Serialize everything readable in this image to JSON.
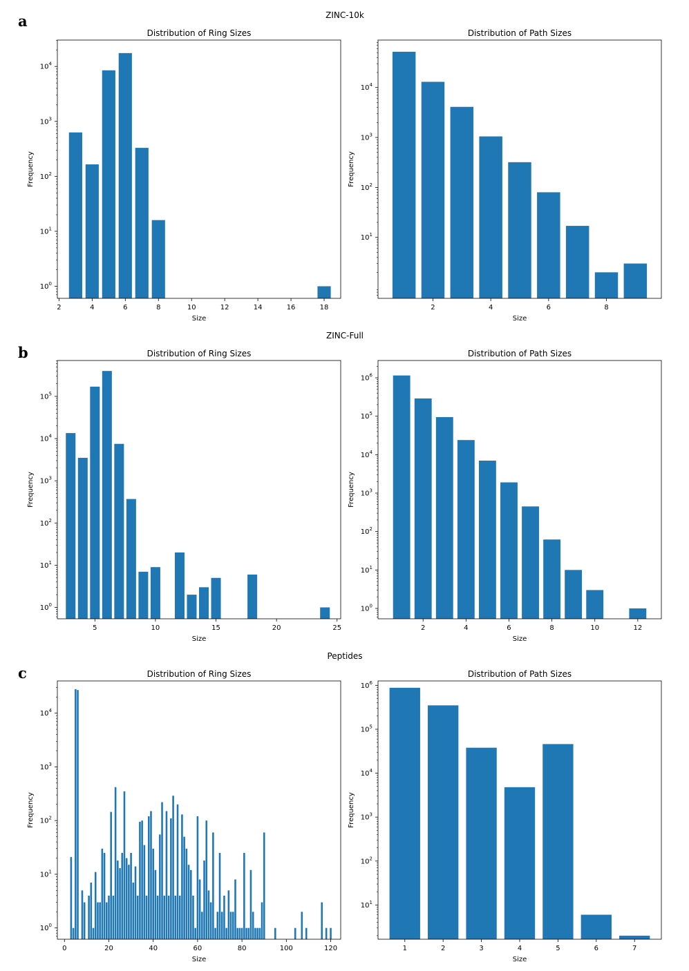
{
  "colors": {
    "bar": "#1f77b4",
    "axis": "#000000",
    "background": "#ffffff"
  },
  "charts": [
    {
      "id": "zinc10k",
      "panel_letter": "a",
      "dataset_title": "ZINC-10k",
      "ring": {
        "chart_data": {
          "type": "bar",
          "title": "Distribution of Ring Sizes",
          "xlabel": "Size",
          "ylabel": "Frequency",
          "yscale": "log",
          "xlim": [
            1.9,
            19.0
          ],
          "ylim_log10": [
            -0.22,
            4.48
          ],
          "bar_width": 0.8,
          "x_ticks": [
            2,
            4,
            6,
            8,
            10,
            12,
            14,
            16,
            18
          ],
          "y_ticks": [
            {
              "exp": "0",
              "val": 1
            },
            {
              "exp": "1",
              "val": 10
            },
            {
              "exp": "2",
              "val": 100
            },
            {
              "exp": "3",
              "val": 1000
            },
            {
              "exp": "4",
              "val": 10000
            }
          ],
          "x": [
            3,
            4,
            5,
            6,
            7,
            8,
            18
          ],
          "values": [
            630,
            165,
            8500,
            17500,
            330,
            16,
            1
          ]
        }
      },
      "path": {
        "chart_data": {
          "type": "bar",
          "title": "Distribution of Path Sizes",
          "xlabel": "Size",
          "ylabel": "Frequency",
          "yscale": "log",
          "xlim": [
            0.1,
            9.9
          ],
          "ylim_log10": [
            -0.22,
            4.95
          ],
          "bar_width": 0.8,
          "x_ticks": [
            2,
            4,
            6,
            8
          ],
          "y_ticks": [
            {
              "exp": "1",
              "val": 10
            },
            {
              "exp": "2",
              "val": 100
            },
            {
              "exp": "3",
              "val": 1000
            },
            {
              "exp": "4",
              "val": 10000
            }
          ],
          "x": [
            1,
            2,
            3,
            4,
            5,
            6,
            7,
            8,
            9
          ],
          "values": [
            52000,
            13000,
            4100,
            1050,
            320,
            80,
            17,
            2,
            3
          ]
        }
      }
    },
    {
      "id": "zincfull",
      "panel_letter": "b",
      "dataset_title": "ZINC-Full",
      "ring": {
        "chart_data": {
          "type": "bar",
          "title": "Distribution of Ring Sizes",
          "xlabel": "Size",
          "ylabel": "Frequency",
          "yscale": "log",
          "xlim": [
            1.9,
            25.3
          ],
          "ylim_log10": [
            -0.27,
            5.85
          ],
          "bar_width": 0.8,
          "x_ticks": [
            5,
            10,
            15,
            20,
            25
          ],
          "y_ticks": [
            {
              "exp": "0",
              "val": 1
            },
            {
              "exp": "1",
              "val": 10
            },
            {
              "exp": "2",
              "val": 100
            },
            {
              "exp": "3",
              "val": 1000
            },
            {
              "exp": "4",
              "val": 10000
            },
            {
              "exp": "5",
              "val": 100000
            }
          ],
          "x": [
            3,
            4,
            5,
            6,
            7,
            8,
            9,
            10,
            12,
            13,
            14,
            15,
            18,
            24
          ],
          "values": [
            13500,
            3500,
            170000,
            400000,
            7500,
            370,
            7,
            9,
            20,
            2,
            3,
            5,
            6,
            1
          ]
        }
      },
      "path": {
        "chart_data": {
          "type": "bar",
          "title": "Distribution of Path Sizes",
          "xlabel": "Size",
          "ylabel": "Frequency",
          "yscale": "log",
          "xlim": [
            -0.1,
            13.1
          ],
          "ylim_log10": [
            -0.27,
            6.45
          ],
          "bar_width": 0.8,
          "x_ticks": [
            2,
            4,
            6,
            8,
            10,
            12
          ],
          "y_ticks": [
            {
              "exp": "0",
              "val": 1
            },
            {
              "exp": "1",
              "val": 10
            },
            {
              "exp": "2",
              "val": 100
            },
            {
              "exp": "3",
              "val": 1000
            },
            {
              "exp": "4",
              "val": 10000
            },
            {
              "exp": "5",
              "val": 100000
            },
            {
              "exp": "6",
              "val": 1000000
            }
          ],
          "x": [
            1,
            2,
            3,
            4,
            5,
            6,
            7,
            8,
            9,
            10,
            12
          ],
          "values": [
            1150000,
            290000,
            95000,
            24000,
            7000,
            1900,
            450,
            62,
            10,
            3,
            1
          ]
        }
      }
    },
    {
      "id": "peptides",
      "panel_letter": "c",
      "dataset_title": "Peptides",
      "ring": {
        "chart_data": {
          "type": "bar",
          "title": "Distribution of Ring Sizes",
          "xlabel": "Size",
          "ylabel": "Frequency",
          "yscale": "log",
          "xlim": [
            -3.2,
            124.5
          ],
          "ylim_log10": [
            -0.21,
            4.6
          ],
          "bar_width": 0.8,
          "x_ticks": [
            0,
            20,
            40,
            60,
            80,
            100,
            120
          ],
          "y_ticks": [
            {
              "exp": "0",
              "val": 1
            },
            {
              "exp": "1",
              "val": 10
            },
            {
              "exp": "2",
              "val": 100
            },
            {
              "exp": "3",
              "val": 1000
            },
            {
              "exp": "4",
              "val": 10000
            }
          ],
          "x": [
            3,
            4,
            5,
            6,
            8,
            9,
            11,
            12,
            13,
            14,
            15,
            16,
            17,
            18,
            19,
            20,
            21,
            22,
            23,
            24,
            25,
            26,
            27,
            28,
            29,
            30,
            31,
            32,
            33,
            34,
            35,
            36,
            37,
            38,
            39,
            40,
            41,
            42,
            43,
            44,
            45,
            46,
            47,
            48,
            49,
            50,
            51,
            52,
            53,
            54,
            55,
            56,
            57,
            58,
            59,
            60,
            61,
            62,
            63,
            64,
            65,
            66,
            67,
            68,
            69,
            70,
            71,
            72,
            73,
            74,
            75,
            76,
            77,
            78,
            79,
            80,
            81,
            82,
            83,
            84,
            85,
            86,
            87,
            88,
            89,
            90,
            95,
            104,
            107,
            109,
            116,
            118,
            120
          ],
          "values": [
            21,
            1,
            28000,
            27000,
            5,
            3,
            4,
            7,
            1,
            11,
            3,
            3,
            30,
            25,
            3,
            4,
            145,
            4,
            420,
            18,
            13,
            25,
            350,
            20,
            15,
            25,
            7,
            14,
            4,
            95,
            100,
            35,
            4,
            120,
            150,
            30,
            12,
            4,
            55,
            220,
            4,
            150,
            4,
            110,
            290,
            4,
            200,
            4,
            130,
            50,
            30,
            15,
            12,
            4,
            1,
            120,
            8,
            2,
            18,
            100,
            5,
            3,
            60,
            1,
            2,
            25,
            2,
            4,
            1,
            5,
            2,
            2,
            8,
            1,
            1,
            1,
            25,
            1,
            1,
            12,
            2,
            1,
            1,
            1,
            3,
            60,
            1,
            1,
            2,
            1,
            3,
            1,
            1
          ]
        }
      },
      "path": {
        "chart_data": {
          "type": "bar",
          "title": "Distribution of Path Sizes",
          "xlabel": "Size",
          "ylabel": "Frequency",
          "yscale": "log",
          "xlim": [
            0.3,
            7.7
          ],
          "ylim_log10": [
            0.22,
            6.1
          ],
          "bar_width": 0.8,
          "x_ticks": [
            1,
            2,
            3,
            4,
            5,
            6,
            7
          ],
          "y_ticks": [
            {
              "exp": "1",
              "val": 10
            },
            {
              "exp": "2",
              "val": 100
            },
            {
              "exp": "3",
              "val": 1000
            },
            {
              "exp": "4",
              "val": 10000
            },
            {
              "exp": "5",
              "val": 100000
            },
            {
              "exp": "6",
              "val": 1000000
            }
          ],
          "x": [
            1,
            2,
            3,
            4,
            5,
            6,
            7
          ],
          "values": [
            880000,
            350000,
            38000,
            4800,
            46000,
            6,
            2
          ]
        }
      }
    }
  ]
}
